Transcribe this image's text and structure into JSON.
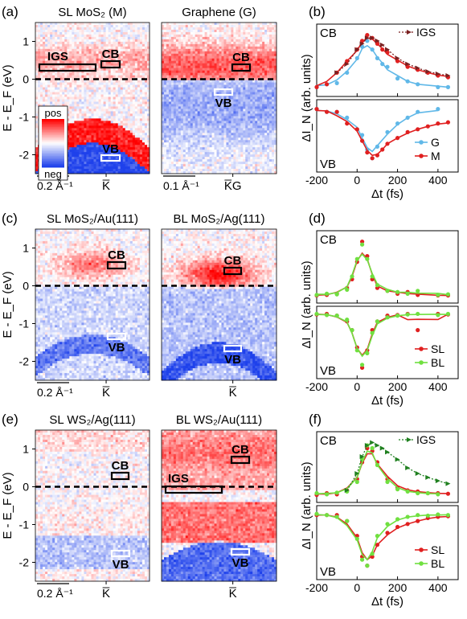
{
  "colors": {
    "pos": "#ff2020",
    "neg": "#2040e0",
    "M": "#e02020",
    "G": "#60b8e8",
    "SL": "#e02020",
    "BL": "#70e040",
    "IGS_b": "#7a2020",
    "IGS_f": "#208020"
  },
  "colorbar": {
    "pos": "pos",
    "neg": "neg"
  },
  "rows": [
    {
      "letter_maps": "(a)",
      "letter_dyn": "(b)",
      "maps": [
        {
          "title": "SL MoS₂ (M)",
          "k_label": "K̅",
          "scale_label": "0.2 Å⁻¹",
          "cb_label": "CB",
          "vb_label": "VB",
          "igs_label": "IGS",
          "style": "mos2_ml"
        },
        {
          "title": "Graphene (G)",
          "k_label": "K̅G",
          "scale_label": "0.1 Å⁻¹",
          "cb_label": "CB",
          "vb_label": "VB",
          "igs_label": "",
          "style": "graphene"
        }
      ],
      "dyn": {
        "top_label": "CB",
        "bottom_label": "VB",
        "legend_top": "IGS",
        "legend": [
          "G",
          "M"
        ]
      }
    },
    {
      "letter_maps": "(c)",
      "letter_dyn": "(d)",
      "maps": [
        {
          "title": "SL MoS₂/Au(111)",
          "k_label": "K̅",
          "scale_label": "0.2 Å⁻¹",
          "cb_label": "CB",
          "vb_label": "VB",
          "igs_label": "",
          "style": "au"
        },
        {
          "title": "BL MoS₂/Ag(111)",
          "k_label": "K̅",
          "scale_label": "",
          "cb_label": "CB",
          "vb_label": "VB",
          "igs_label": "",
          "style": "ag"
        }
      ],
      "dyn": {
        "top_label": "CB",
        "bottom_label": "VB",
        "legend_top": "",
        "legend": [
          "SL",
          "BL"
        ]
      }
    },
    {
      "letter_maps": "(e)",
      "letter_dyn": "(f)",
      "maps": [
        {
          "title": "SL WS₂/Ag(111)",
          "k_label": "K̅",
          "scale_label": "0.2 Å⁻¹",
          "cb_label": "CB",
          "vb_label": "VB",
          "igs_label": "",
          "style": "ws2_sl"
        },
        {
          "title": "BL WS₂/Au(111)",
          "k_label": "K̅",
          "scale_label": "",
          "cb_label": "CB",
          "vb_label": "VB",
          "igs_label": "IGS",
          "style": "ws2_bl"
        }
      ],
      "dyn": {
        "top_label": "CB",
        "bottom_label": "VB",
        "legend_top": "IGS",
        "legend": [
          "SL",
          "BL"
        ]
      }
    }
  ],
  "map_axis": {
    "ylabel": "E - E_F (eV)",
    "ticks": [
      "1",
      "0",
      "-1",
      "-2"
    ]
  },
  "chart_data": [
    {
      "type": "scatter",
      "title": "(b)",
      "xlabel": "Δt (fs)",
      "ylabel": "ΔI_N (arb. units)",
      "xlim": [
        -200,
        500
      ],
      "xticks": [
        "-200",
        "0",
        "200",
        "400"
      ],
      "series": [
        {
          "name": "G",
          "panel": "CB",
          "x": [
            -200,
            -150,
            -100,
            -50,
            0,
            25,
            50,
            75,
            100,
            125,
            150,
            200,
            250,
            300,
            400,
            450
          ],
          "y": [
            0.05,
            0.1,
            0.12,
            0.3,
            0.55,
            0.75,
            0.85,
            0.7,
            0.55,
            0.45,
            0.4,
            0.2,
            0.15,
            0.1,
            0.05,
            0.05
          ]
        },
        {
          "name": "M",
          "panel": "CB",
          "x": [
            -200,
            -150,
            -100,
            -50,
            0,
            25,
            50,
            75,
            100,
            125,
            150,
            200,
            250,
            300,
            350,
            400,
            450
          ],
          "y": [
            0.05,
            0.1,
            0.3,
            0.5,
            0.7,
            0.85,
            0.95,
            0.9,
            0.8,
            0.7,
            0.65,
            0.5,
            0.4,
            0.35,
            0.3,
            0.25,
            0.22
          ]
        },
        {
          "name": "IGS",
          "panel": "CB",
          "x": [
            -100,
            -50,
            0,
            25,
            50,
            75,
            100,
            125,
            150,
            200,
            250,
            300,
            350,
            400,
            450
          ],
          "y": [
            0.3,
            0.45,
            0.7,
            0.8,
            0.9,
            0.9,
            0.85,
            0.78,
            0.7,
            0.55,
            0.45,
            0.38,
            0.32,
            0.28,
            0.25
          ]
        },
        {
          "name": "G",
          "panel": "VB",
          "x": [
            -200,
            -150,
            -100,
            -50,
            0,
            25,
            50,
            75,
            100,
            150,
            200,
            250,
            300,
            400
          ],
          "y": [
            -0.05,
            -0.1,
            -0.1,
            -0.2,
            -0.4,
            -0.5,
            -0.75,
            -0.9,
            -0.7,
            -0.45,
            -0.3,
            -0.2,
            -0.1,
            -0.05
          ]
        },
        {
          "name": "M",
          "panel": "VB",
          "x": [
            -200,
            -150,
            -100,
            -50,
            0,
            25,
            50,
            75,
            100,
            125,
            150,
            200,
            250,
            300,
            350,
            400,
            450
          ],
          "y": [
            -0.05,
            -0.1,
            -0.1,
            -0.3,
            -0.4,
            -0.6,
            -0.8,
            -0.9,
            -0.85,
            -0.75,
            -0.65,
            -0.55,
            -0.45,
            -0.4,
            -0.35,
            -0.3,
            -0.28
          ]
        }
      ]
    },
    {
      "type": "scatter",
      "title": "(d)",
      "xlabel": "Δt (fs)",
      "ylabel": "ΔI_N (arb. units)",
      "xlim": [
        -200,
        500
      ],
      "xticks": [
        "-200",
        "0",
        "200",
        "400"
      ],
      "series": [
        {
          "name": "SL",
          "panel": "CB",
          "x": [
            -200,
            -150,
            -100,
            -50,
            -25,
            0,
            25,
            50,
            75,
            100,
            150,
            200,
            250,
            300,
            400,
            450
          ],
          "y": [
            0.02,
            0.03,
            0.05,
            0.15,
            0.3,
            0.6,
            0.95,
            0.7,
            0.3,
            0.15,
            0.1,
            0.05,
            0.08,
            0.03,
            0.02,
            0.02
          ]
        },
        {
          "name": "BL",
          "panel": "CB",
          "x": [
            -200,
            -150,
            -100,
            -50,
            -25,
            0,
            25,
            50,
            75,
            100,
            150,
            200,
            250,
            300,
            400,
            450
          ],
          "y": [
            0.03,
            0.05,
            0.04,
            0.12,
            0.35,
            0.65,
            0.9,
            0.65,
            0.35,
            0.2,
            0.1,
            0.08,
            0.05,
            0.1,
            0.03,
            0.04
          ]
        },
        {
          "name": "SL",
          "panel": "VB",
          "x": [
            -200,
            -150,
            -100,
            -50,
            -25,
            0,
            25,
            50,
            75,
            100,
            150,
            200,
            250,
            300,
            400,
            450
          ],
          "y": [
            -0.03,
            -0.02,
            -0.05,
            -0.15,
            -0.3,
            -0.6,
            -0.95,
            -0.65,
            -0.3,
            -0.15,
            -0.05,
            -0.04,
            -0.02,
            -0.3,
            -0.02,
            -0.03
          ]
        },
        {
          "name": "BL",
          "panel": "VB",
          "x": [
            -200,
            -150,
            -100,
            -50,
            -25,
            0,
            25,
            50,
            75,
            100,
            150,
            200,
            250,
            300,
            400,
            450
          ],
          "y": [
            -0.02,
            -0.04,
            -0.05,
            -0.12,
            -0.3,
            -0.65,
            -0.9,
            -0.7,
            -0.35,
            -0.15,
            -0.08,
            -0.05,
            -0.03,
            -0.02,
            -0.04,
            -0.02
          ]
        }
      ]
    },
    {
      "type": "scatter",
      "title": "(f)",
      "xlabel": "Δt (fs)",
      "ylabel": "ΔI_N (arb. units)",
      "xlim": [
        -200,
        500
      ],
      "xticks": [
        "-200",
        "0",
        "200",
        "400"
      ],
      "series": [
        {
          "name": "SL",
          "panel": "CB",
          "x": [
            -200,
            -150,
            -100,
            -50,
            0,
            25,
            50,
            75,
            100,
            150,
            200,
            250,
            300,
            350,
            400,
            450
          ],
          "y": [
            0.02,
            0.05,
            0.03,
            0.1,
            0.3,
            0.6,
            0.85,
            0.8,
            0.6,
            0.3,
            0.15,
            0.1,
            0.08,
            0.05,
            0.05,
            0.04
          ]
        },
        {
          "name": "BL",
          "panel": "CB",
          "x": [
            -200,
            -150,
            -100,
            -50,
            0,
            25,
            50,
            75,
            100,
            150,
            200,
            250,
            300,
            350,
            400
          ],
          "y": [
            0.05,
            0.03,
            0.06,
            0.08,
            0.25,
            0.65,
            0.9,
            0.85,
            0.55,
            0.25,
            0.12,
            0.08,
            0.05,
            0.05,
            0.03
          ]
        },
        {
          "name": "IGS",
          "panel": "CB",
          "x": [
            -50,
            0,
            25,
            50,
            75,
            100,
            125,
            150,
            200,
            250,
            300,
            350,
            400,
            450
          ],
          "y": [
            0.1,
            0.4,
            0.7,
            0.9,
            0.95,
            0.9,
            0.85,
            0.78,
            0.65,
            0.5,
            0.4,
            0.33,
            0.27,
            0.22
          ]
        },
        {
          "name": "SL",
          "panel": "VB",
          "x": [
            -200,
            -150,
            -100,
            -50,
            0,
            25,
            50,
            75,
            100,
            150,
            200,
            250,
            300,
            350,
            400,
            450
          ],
          "y": [
            -0.05,
            -0.05,
            -0.05,
            -0.15,
            -0.4,
            -0.75,
            -0.9,
            -0.75,
            -0.55,
            -0.35,
            -0.25,
            -0.2,
            -0.15,
            -0.1,
            -0.08,
            -0.07
          ]
        },
        {
          "name": "BL",
          "panel": "VB",
          "x": [
            -200,
            -150,
            -100,
            -50,
            0,
            25,
            50,
            75,
            100,
            150,
            200,
            250,
            300,
            350,
            400,
            450
          ],
          "y": [
            -0.03,
            -0.05,
            -0.08,
            -0.15,
            -0.45,
            -0.8,
            -0.9,
            -0.7,
            -0.4,
            -0.2,
            -0.12,
            -0.08,
            -0.05,
            -0.06,
            -0.04,
            -0.05
          ]
        }
      ]
    }
  ]
}
